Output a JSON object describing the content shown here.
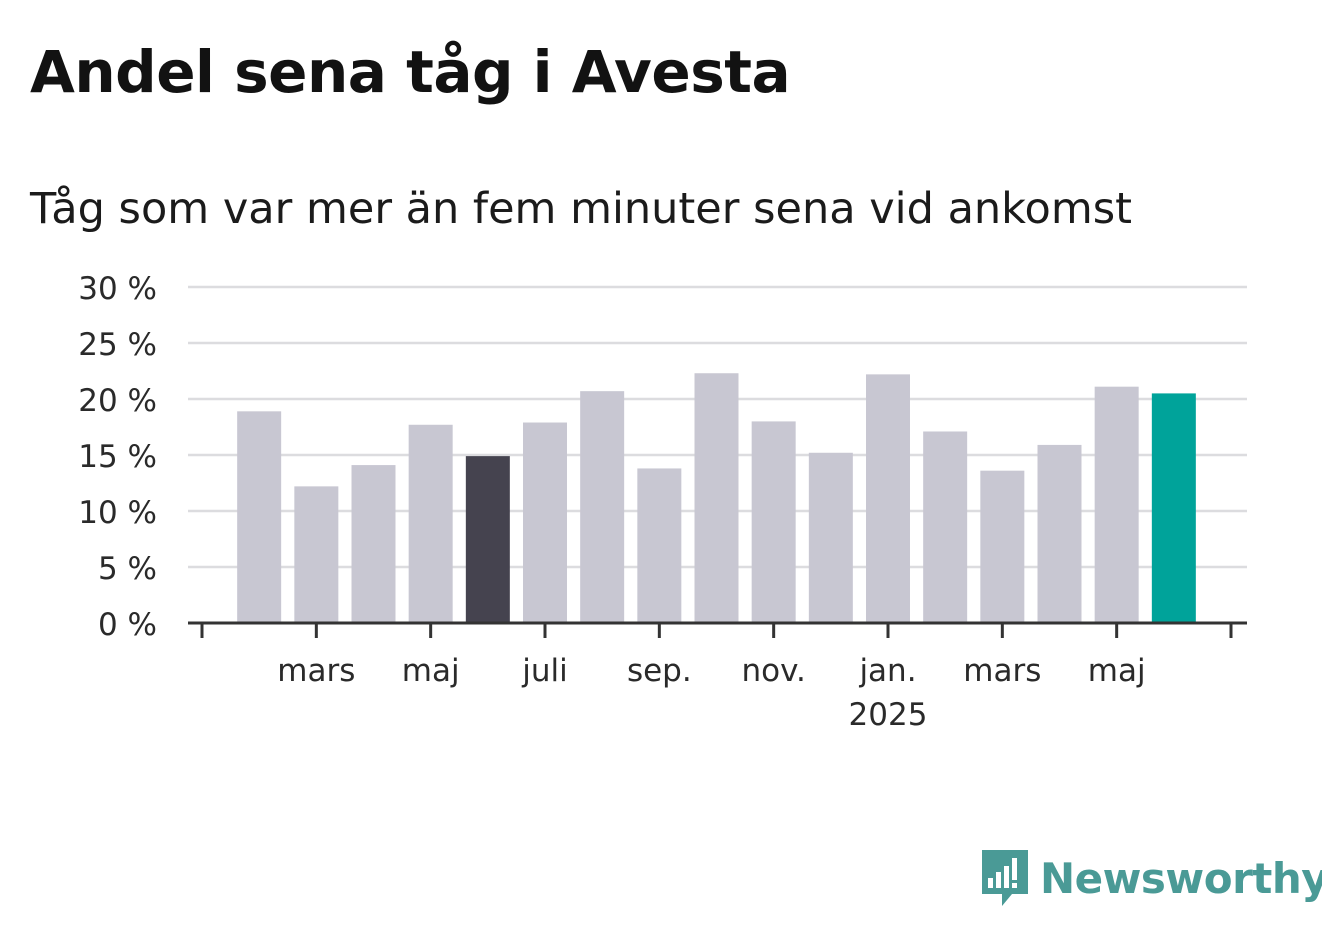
{
  "header": {
    "title": "Andel sena tåg i Avesta",
    "subtitle": "Tåg som var mer än fem minuter sena vid ankomst"
  },
  "brand": {
    "name": "Newsworthy",
    "icon": "newsworthy-logo-icon",
    "color": "#4a9a96"
  },
  "chart_data": {
    "type": "bar",
    "categories": [
      "2024-02",
      "2024-03",
      "2024-04",
      "2024-05",
      "2024-06",
      "2024-07",
      "2024-08",
      "2024-09",
      "2024-10",
      "2024-11",
      "2024-12",
      "2025-01",
      "2025-02",
      "2025-03",
      "2025-04",
      "2025-05",
      "2025-06"
    ],
    "values": [
      18.9,
      12.2,
      14.1,
      17.7,
      14.9,
      17.9,
      20.7,
      13.8,
      22.3,
      18.0,
      15.2,
      22.2,
      17.1,
      13.6,
      15.9,
      21.1,
      20.5
    ],
    "highlight": {
      "2024-06": "#45434f",
      "2025-06": "#00a39a"
    },
    "bar_color": "#c8c7d2",
    "ylim": [
      0,
      30
    ],
    "yticks": [
      "0 %",
      "5 %",
      "10 %",
      "15 %",
      "20 %",
      "25 %",
      "30 %"
    ],
    "ytick_values": [
      0,
      5,
      10,
      15,
      20,
      25,
      30
    ],
    "xticks": [
      {
        "at": "2024-03",
        "label": "mars"
      },
      {
        "at": "2024-05",
        "label": "maj"
      },
      {
        "at": "2024-07",
        "label": "juli"
      },
      {
        "at": "2024-09",
        "label": "sep."
      },
      {
        "at": "2024-11",
        "label": "nov."
      },
      {
        "at": "2025-01",
        "label": "jan.",
        "sublabel": "2025"
      },
      {
        "at": "2025-03",
        "label": "mars"
      },
      {
        "at": "2025-05",
        "label": "maj"
      }
    ],
    "grid": true,
    "xlabel": "",
    "ylabel": ""
  }
}
